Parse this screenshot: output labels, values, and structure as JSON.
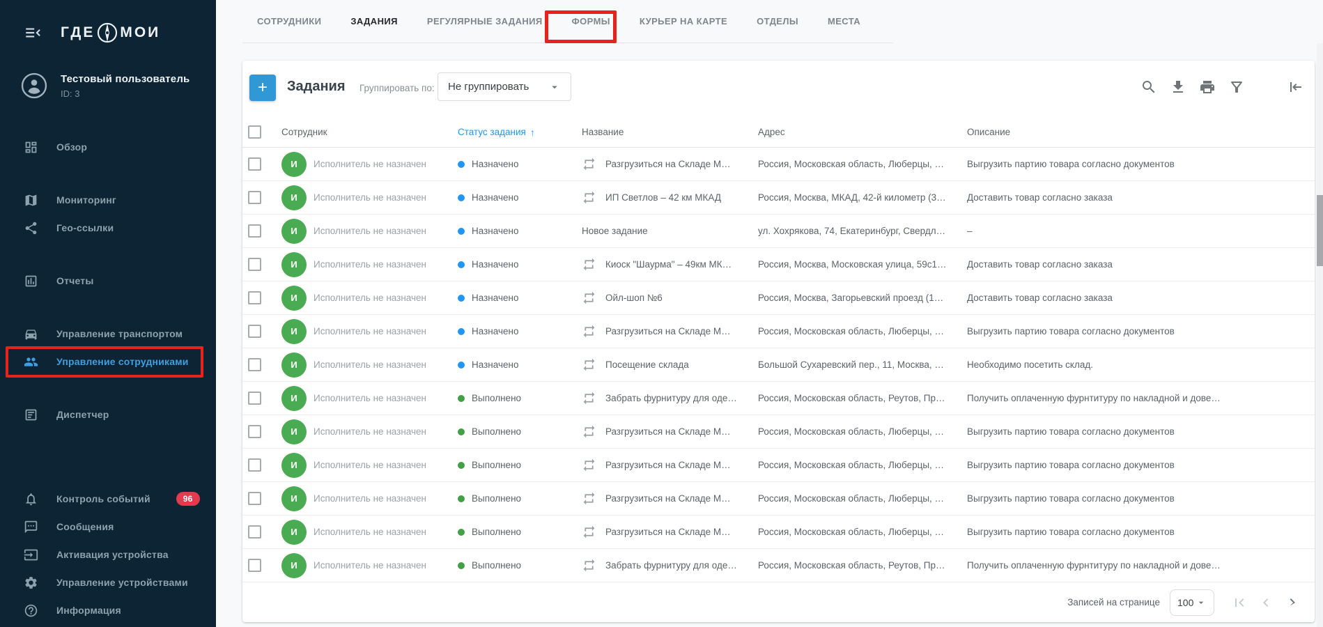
{
  "colors": {
    "sidebar_bg": "#0d2435",
    "sidebar_active": "#3f9fe0",
    "badge_red": "#e23a4e",
    "add_button_blue": "#2f98d5",
    "status_assigned_blue": "#2196f3",
    "status_done_green": "#43a047",
    "avatar_green": "#4aab52",
    "sorted_header_blue": "#2196f3",
    "annotation_red": "#e7231b"
  },
  "sidebar": {
    "logo": {
      "left": "ГДЕ",
      "right": "МОИ"
    },
    "user": {
      "name": "Тестовый пользователь",
      "id_label": "ID: 3"
    },
    "menu_groups": [
      {
        "items": [
          {
            "key": "overview",
            "icon": "dashboard-icon",
            "label": "Обзор"
          }
        ]
      },
      {
        "items": [
          {
            "key": "monitoring",
            "icon": "map-icon",
            "label": "Мониторинг"
          },
          {
            "key": "geo-links",
            "icon": "share-icon",
            "label": "Гео-ссылки"
          }
        ]
      },
      {
        "items": [
          {
            "key": "reports",
            "icon": "chart-icon",
            "label": "Отчеты"
          }
        ]
      },
      {
        "items": [
          {
            "key": "vehicle-management",
            "icon": "car-icon",
            "label": "Управление транспортом"
          },
          {
            "key": "employee-management",
            "icon": "people-icon",
            "label": "Управление сотрудниками",
            "active": true,
            "annotated": true
          }
        ]
      },
      {
        "items": [
          {
            "key": "dispatcher",
            "icon": "document-icon",
            "label": "Диспетчер"
          }
        ]
      },
      {
        "items": [
          {
            "key": "event-control",
            "icon": "bell-icon",
            "label": "Контроль событий",
            "badge": "96"
          },
          {
            "key": "messages",
            "icon": "chat-icon",
            "label": "Сообщения"
          },
          {
            "key": "device-activation",
            "icon": "device-activation-icon",
            "label": "Активация устройства"
          },
          {
            "key": "device-management",
            "icon": "gear-icon",
            "label": "Управление устройствами"
          },
          {
            "key": "information",
            "icon": "help-icon",
            "label": "Информация"
          }
        ]
      }
    ]
  },
  "tabs": [
    {
      "key": "employees",
      "label": "СОТРУДНИКИ"
    },
    {
      "key": "tasks",
      "label": "ЗАДАНИЯ",
      "active": true,
      "annotated": true
    },
    {
      "key": "regular-tasks",
      "label": "РЕГУЛЯРНЫЕ ЗАДАНИЯ"
    },
    {
      "key": "forms",
      "label": "ФОРМЫ"
    },
    {
      "key": "courier-map",
      "label": "КУРЬЕР НА КАРТЕ"
    },
    {
      "key": "departments",
      "label": "ОТДЕЛЫ"
    },
    {
      "key": "places",
      "label": "МЕСТА"
    }
  ],
  "toolbar": {
    "add_button": "+",
    "title": "Задания",
    "group_by_label": "Группировать по:",
    "group_by_value": "Не группировать",
    "action_icons": [
      "search-icon",
      "download-icon",
      "print-icon",
      "filter-icon",
      "settings-icon",
      "collapse-panel-icon"
    ]
  },
  "table": {
    "headers": {
      "employee": "Сотрудник",
      "status": "Статус задания",
      "name": "Название",
      "address": "Адрес",
      "description": "Описание"
    },
    "sort": {
      "column": "Статус задания",
      "direction": "asc",
      "arrow": "↑"
    },
    "rows": [
      {
        "avatar": "И",
        "employee": "Исполнитель не назначен",
        "status": "Назначено",
        "status_type": "assigned",
        "repeat": true,
        "name": "Разгрузиться на Складе М…",
        "address": "Россия, Московская область, Люберцы, …",
        "description": "Выгрузить партию товара согласно документов"
      },
      {
        "avatar": "И",
        "employee": "Исполнитель не назначен",
        "status": "Назначено",
        "status_type": "assigned",
        "repeat": true,
        "name": "ИП Светлов – 42 км МКАД",
        "address": "Россия, Москва, МКАД, 42-й километр (3…",
        "description": "Доставить товар согласно заказа"
      },
      {
        "avatar": "И",
        "employee": "Исполнитель не назначен",
        "status": "Назначено",
        "status_type": "assigned",
        "repeat": false,
        "name": "Новое задание",
        "address": "ул. Хохрякова, 74, Екатеринбург, Свердл…",
        "description": "–"
      },
      {
        "avatar": "И",
        "employee": "Исполнитель не назначен",
        "status": "Назначено",
        "status_type": "assigned",
        "repeat": true,
        "name": "Киоск \"Шаурма\" – 49км МК…",
        "address": "Россия, Москва, Московская улица, 59с1…",
        "description": "Доставить товар согласно заказа"
      },
      {
        "avatar": "И",
        "employee": "Исполнитель не назначен",
        "status": "Назначено",
        "status_type": "assigned",
        "repeat": true,
        "name": "Ойл-шоп №6",
        "address": "Россия, Москва, Загорьевский проезд (1…",
        "description": "Доставить товар согласно заказа"
      },
      {
        "avatar": "И",
        "employee": "Исполнитель не назначен",
        "status": "Назначено",
        "status_type": "assigned",
        "repeat": true,
        "name": "Разгрузиться на Складе М…",
        "address": "Россия, Московская область, Люберцы, …",
        "description": "Выгрузить партию товара согласно документов"
      },
      {
        "avatar": "И",
        "employee": "Исполнитель не назначен",
        "status": "Назначено",
        "status_type": "assigned",
        "repeat": true,
        "name": "Посещение склада",
        "address": "Большой Сухаревский пер., 11, Москва, …",
        "description": "Необходимо посетить склад."
      },
      {
        "avatar": "И",
        "employee": "Исполнитель не назначен",
        "status": "Выполнено",
        "status_type": "done",
        "repeat": true,
        "name": "Забрать фурнитуру для оде…",
        "address": "Россия, Московская область, Реутов, Пр…",
        "description": "Получить оплаченную фурнтитуру по накладной и дове…"
      },
      {
        "avatar": "И",
        "employee": "Исполнитель не назначен",
        "status": "Выполнено",
        "status_type": "done",
        "repeat": true,
        "name": "Разгрузиться на Складе М…",
        "address": "Россия, Московская область, Люберцы, …",
        "description": "Выгрузить партию товара согласно документов"
      },
      {
        "avatar": "И",
        "employee": "Исполнитель не назначен",
        "status": "Выполнено",
        "status_type": "done",
        "repeat": true,
        "name": "Разгрузиться на Складе М…",
        "address": "Россия, Московская область, Люберцы, …",
        "description": "Выгрузить партию товара согласно документов"
      },
      {
        "avatar": "И",
        "employee": "Исполнитель не назначен",
        "status": "Выполнено",
        "status_type": "done",
        "repeat": true,
        "name": "Разгрузиться на Складе М…",
        "address": "Россия, Московская область, Люберцы, …",
        "description": "Выгрузить партию товара согласно документов"
      },
      {
        "avatar": "И",
        "employee": "Исполнитель не назначен",
        "status": "Выполнено",
        "status_type": "done",
        "repeat": true,
        "name": "Разгрузиться на Складе М…",
        "address": "Россия, Московская область, Люберцы, …",
        "description": "Выгрузить партию товара согласно документов"
      },
      {
        "avatar": "И",
        "employee": "Исполнитель не назначен",
        "status": "Выполнено",
        "status_type": "done",
        "repeat": true,
        "name": "Забрать фурнитуру для оде…",
        "address": "Россия, Московская область, Реутов, Пр…",
        "description": "Получить оплаченную фурнтитуру по накладной и дове…"
      }
    ]
  },
  "pagination": {
    "label": "Записей на странице",
    "page_size": "100"
  }
}
